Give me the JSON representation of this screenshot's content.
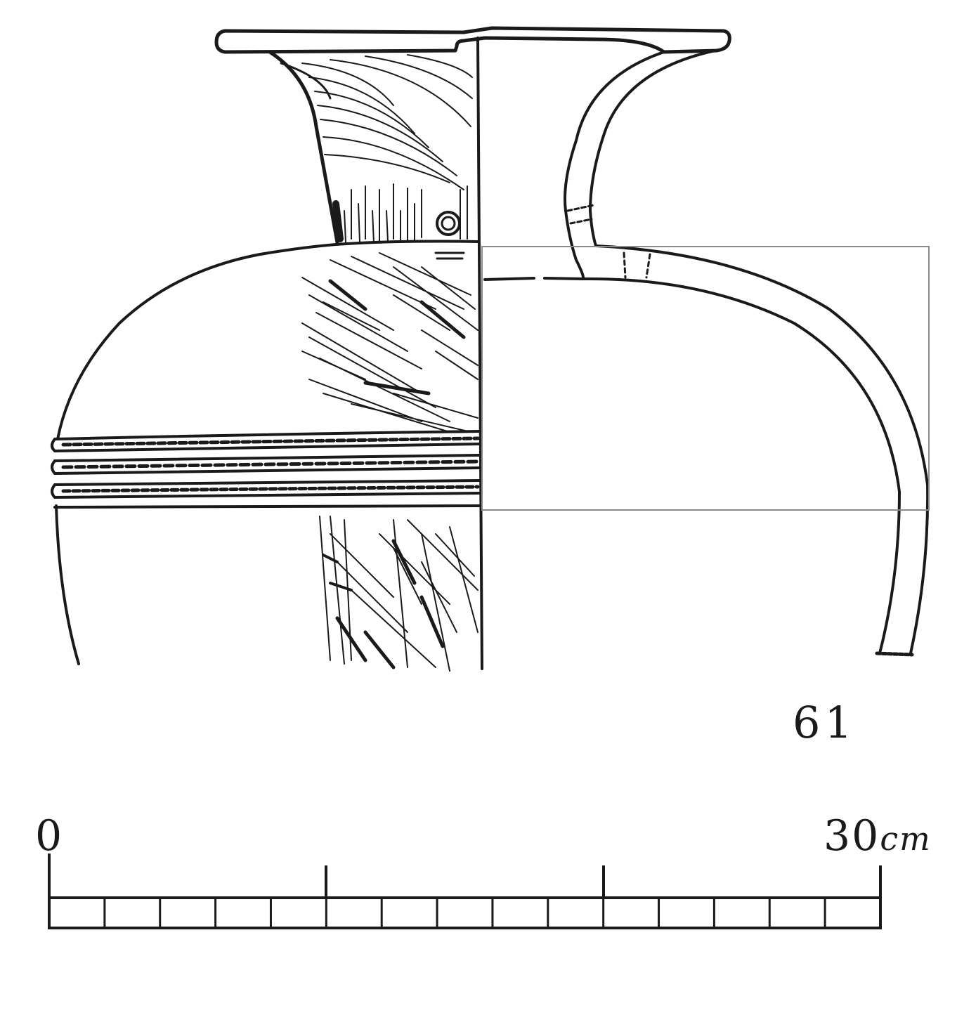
{
  "figure": {
    "number": "61",
    "ink_color": "#1a1a1a",
    "frame_color": "#8a8a8a",
    "background": "#ffffff"
  },
  "scale_bar": {
    "start_label": "0",
    "end_value": "30",
    "end_unit": "cm",
    "segments": 15,
    "major_ticks": [
      0,
      10,
      20,
      30
    ]
  }
}
